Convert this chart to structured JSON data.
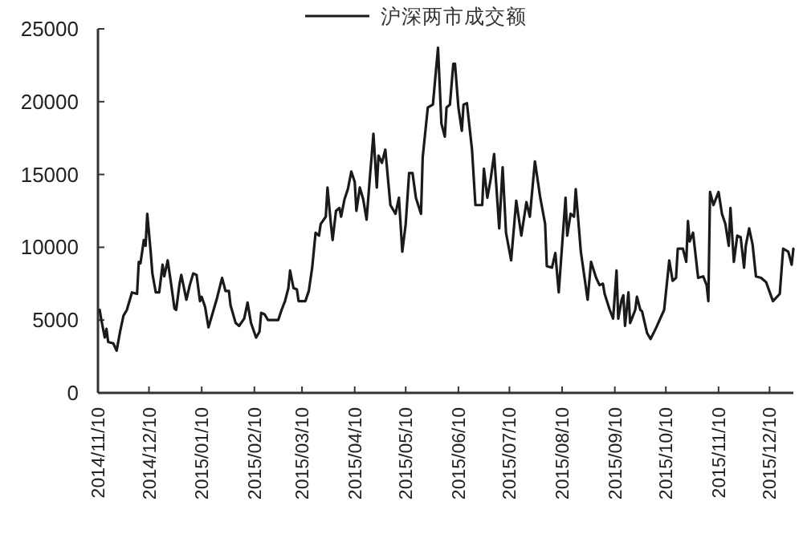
{
  "chart_data": {
    "type": "line",
    "legend": "top",
    "x": [
      "2014-11-11",
      "2014-11-12",
      "2014-11-14",
      "2014-11-15",
      "2014-11-16",
      "2014-11-19",
      "2014-11-21",
      "2014-11-23",
      "2014-11-25",
      "2014-11-27",
      "2014-11-30",
      "2014-12-03",
      "2014-12-04",
      "2014-12-05",
      "2014-12-07",
      "2014-12-08",
      "2014-12-09",
      "2014-12-11",
      "2014-12-12",
      "2014-12-14",
      "2014-12-16",
      "2014-12-18",
      "2014-12-19",
      "2014-12-21",
      "2014-12-23",
      "2014-12-25",
      "2014-12-26",
      "2014-12-28",
      "2014-12-29",
      "2015-01-01",
      "2015-01-03",
      "2015-01-05",
      "2015-01-07",
      "2015-01-09",
      "2015-01-10",
      "2015-01-12",
      "2015-01-14",
      "2015-01-17",
      "2015-01-19",
      "2015-01-22",
      "2015-01-24",
      "2015-01-26",
      "2015-01-27",
      "2015-01-30",
      "2015-02-01",
      "2015-02-04",
      "2015-02-06",
      "2015-02-08",
      "2015-02-11",
      "2015-02-13",
      "2015-02-14",
      "2015-02-16",
      "2015-02-18",
      "2015-02-24",
      "2015-02-26",
      "2015-02-28",
      "2015-03-02",
      "2015-03-03",
      "2015-03-05",
      "2015-03-07",
      "2015-03-08",
      "2015-03-12",
      "2015-03-14",
      "2015-03-16",
      "2015-03-18",
      "2015-03-20",
      "2015-03-21",
      "2015-03-24",
      "2015-03-25",
      "2015-03-27",
      "2015-03-28",
      "2015-03-30",
      "2015-04-01",
      "2015-04-02",
      "2015-04-04",
      "2015-04-06",
      "2015-04-08",
      "2015-04-10",
      "2015-04-11",
      "2015-04-13",
      "2015-04-15",
      "2015-04-17",
      "2015-04-19",
      "2015-04-20",
      "2015-04-21",
      "2015-04-23",
      "2015-04-24",
      "2015-04-26",
      "2015-04-28",
      "2015-05-01",
      "2015-05-04",
      "2015-05-06",
      "2015-05-08",
      "2015-05-10",
      "2015-05-12",
      "2015-05-14",
      "2015-05-16",
      "2015-05-19",
      "2015-05-20",
      "2015-05-23",
      "2015-05-26",
      "2015-05-27",
      "2015-05-29",
      "2015-05-31",
      "2015-06-02",
      "2015-06-03",
      "2015-06-05",
      "2015-06-07",
      "2015-06-08",
      "2015-06-10",
      "2015-06-12",
      "2015-06-13",
      "2015-06-15",
      "2015-06-18",
      "2015-06-20",
      "2015-06-24",
      "2015-06-25",
      "2015-06-27",
      "2015-06-29",
      "2015-07-01",
      "2015-07-04",
      "2015-07-06",
      "2015-07-08",
      "2015-07-11",
      "2015-07-14",
      "2015-07-17",
      "2015-07-20",
      "2015-07-22",
      "2015-07-25",
      "2015-07-28",
      "2015-07-31",
      "2015-08-01",
      "2015-08-04",
      "2015-08-06",
      "2015-08-08",
      "2015-08-12",
      "2015-08-13",
      "2015-08-15",
      "2015-08-17",
      "2015-08-18",
      "2015-08-21",
      "2015-08-25",
      "2015-08-27",
      "2015-08-30",
      "2015-09-01",
      "2015-09-03",
      "2015-09-04",
      "2015-09-07",
      "2015-09-09",
      "2015-09-11",
      "2015-09-12",
      "2015-09-14",
      "2015-09-15",
      "2015-09-16",
      "2015-09-18",
      "2015-09-19",
      "2015-09-22",
      "2015-09-23",
      "2015-09-25",
      "2015-09-26",
      "2015-09-29",
      "2015-10-01",
      "2015-10-04",
      "2015-10-09",
      "2015-10-12",
      "2015-10-14",
      "2015-10-16",
      "2015-10-17",
      "2015-10-20",
      "2015-10-22",
      "2015-10-23",
      "2015-10-24",
      "2015-10-26",
      "2015-10-29",
      "2015-11-01",
      "2015-11-03",
      "2015-11-04",
      "2015-11-05",
      "2015-11-07",
      "2015-11-10",
      "2015-11-12",
      "2015-11-14",
      "2015-11-16",
      "2015-11-17",
      "2015-11-19",
      "2015-11-21",
      "2015-11-23",
      "2015-11-25",
      "2015-11-26",
      "2015-11-28",
      "2015-11-30",
      "2015-12-02",
      "2015-12-05",
      "2015-12-08",
      "2015-12-12",
      "2015-12-16",
      "2015-12-18",
      "2015-12-21",
      "2015-12-23",
      "2015-12-24"
    ],
    "series": [
      {
        "name": "沪深两市成交额",
        "color": "#1a1a1a",
        "values": [
          5700,
          5000,
          3800,
          4400,
          3500,
          3400,
          2900,
          4200,
          5300,
          5700,
          6900,
          6800,
          9000,
          8900,
          10500,
          10100,
          12300,
          9700,
          8200,
          6900,
          6900,
          8800,
          8000,
          9100,
          7500,
          5800,
          5700,
          7500,
          8100,
          6400,
          7400,
          8200,
          8100,
          6300,
          6600,
          5900,
          4500,
          5700,
          6500,
          7900,
          7000,
          7000,
          6000,
          4800,
          4600,
          5100,
          6200,
          4800,
          3800,
          4200,
          5500,
          5400,
          5000,
          5000,
          5700,
          6300,
          7200,
          8400,
          7200,
          7100,
          6300,
          6300,
          7000,
          8600,
          11000,
          10800,
          11600,
          12100,
          14100,
          11600,
          10500,
          12500,
          12700,
          12100,
          13300,
          14000,
          15200,
          14500,
          12500,
          14100,
          13300,
          11900,
          14900,
          16300,
          17800,
          14100,
          16300,
          15800,
          16700,
          12900,
          12300,
          13400,
          9700,
          11600,
          15100,
          15100,
          13400,
          12300,
          16200,
          19600,
          19800,
          21100,
          23700,
          18500,
          17600,
          19600,
          19800,
          22600,
          22600,
          19600,
          18000,
          19800,
          19900,
          16700,
          12900,
          12900,
          15400,
          13400,
          14700,
          16400,
          11300,
          15500,
          11000,
          9100,
          13200,
          10800,
          13100,
          12100,
          15900,
          13500,
          11600,
          8700,
          8600,
          9600,
          6900,
          13400,
          10800,
          12300,
          12100,
          14000,
          9700,
          6400,
          9000,
          7900,
          7400,
          7500,
          6800,
          5700,
          5100,
          8400,
          5100,
          6400,
          6700,
          4600,
          6900,
          4800,
          5700,
          6600,
          5700,
          5600,
          4100,
          3700,
          4400,
          5700,
          9100,
          7700,
          7900,
          9900,
          9900,
          9000,
          11800,
          10400,
          11000,
          7900,
          8000,
          7400,
          6300,
          13800,
          12900,
          13800,
          12300,
          11600,
          10100,
          12700,
          9000,
          10800,
          10700,
          8600,
          10100,
          11300,
          10200,
          8000,
          7900,
          7600,
          6300,
          6800,
          9900,
          9700,
          8800,
          9900
        ]
      }
    ],
    "xlim": [
      "2014-11-10",
      "2015-12-24"
    ],
    "xticks": [
      {
        "value": "2014-11-10",
        "label": "2014/11/10"
      },
      {
        "value": "2014-12-10",
        "label": "2014/12/10"
      },
      {
        "value": "2015-01-10",
        "label": "2015/01/10"
      },
      {
        "value": "2015-02-10",
        "label": "2015/02/10"
      },
      {
        "value": "2015-03-10",
        "label": "2015/03/10"
      },
      {
        "value": "2015-04-10",
        "label": "2015/04/10"
      },
      {
        "value": "2015-05-10",
        "label": "2015/05/10"
      },
      {
        "value": "2015-06-10",
        "label": "2015/06/10"
      },
      {
        "value": "2015-07-10",
        "label": "2015/07/10"
      },
      {
        "value": "2015-08-10",
        "label": "2015/08/10"
      },
      {
        "value": "2015-09-10",
        "label": "2015/09/10"
      },
      {
        "value": "2015-10-10",
        "label": "2015/10/10"
      },
      {
        "value": "2015-11-10",
        "label": "2015/11/10"
      },
      {
        "value": "2015-12-10",
        "label": "2015/12/10"
      }
    ],
    "ylim": [
      0,
      25000
    ],
    "yticks": [
      0,
      5000,
      10000,
      15000,
      20000,
      25000
    ]
  }
}
